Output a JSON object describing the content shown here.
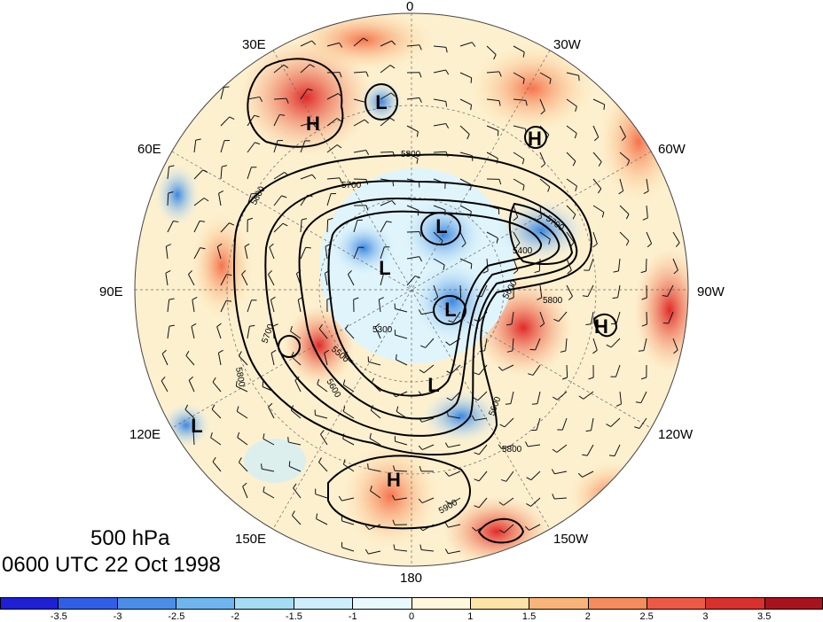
{
  "title": {
    "level": "500 hPa",
    "datetime": "0600 UTC 22 Oct 1998"
  },
  "longitude_labels": {
    "lon_0": "0",
    "lon_30w": "30W",
    "lon_60w": "60W",
    "lon_90w": "90W",
    "lon_120w": "120W",
    "lon_150w": "150W",
    "lon_180": "180",
    "lon_150e": "150E",
    "lon_120e": "120E",
    "lon_90e": "90E",
    "lon_60e": "60E",
    "lon_30e": "30E"
  },
  "pressure_centers": [
    "H",
    "L",
    "H",
    "L",
    "L",
    "L",
    "L",
    "H",
    "L",
    "H"
  ],
  "contour_labels": [
    "5800",
    "5700",
    "5800",
    "5700",
    "5400",
    "5800",
    "5600",
    "5700",
    "5500",
    "5300",
    "5600",
    "5800",
    "5800",
    "5600",
    "5900"
  ],
  "colorbar": {
    "ticks": [
      "-3.5",
      "-3",
      "-2.5",
      "-2",
      "-1.5",
      "-1",
      "0",
      "1",
      "1.5",
      "2",
      "2.5",
      "3",
      "3.5"
    ],
    "colors": [
      "#1f1fd6",
      "#2f5fe6",
      "#4a8ee8",
      "#6fb6ee",
      "#a4dcf4",
      "#cdeefa",
      "#e9f8fc",
      "#fff8dc",
      "#fde3a5",
      "#f9b47a",
      "#f48c5b",
      "#ec5a45",
      "#d8302c",
      "#a8141e"
    ]
  }
}
